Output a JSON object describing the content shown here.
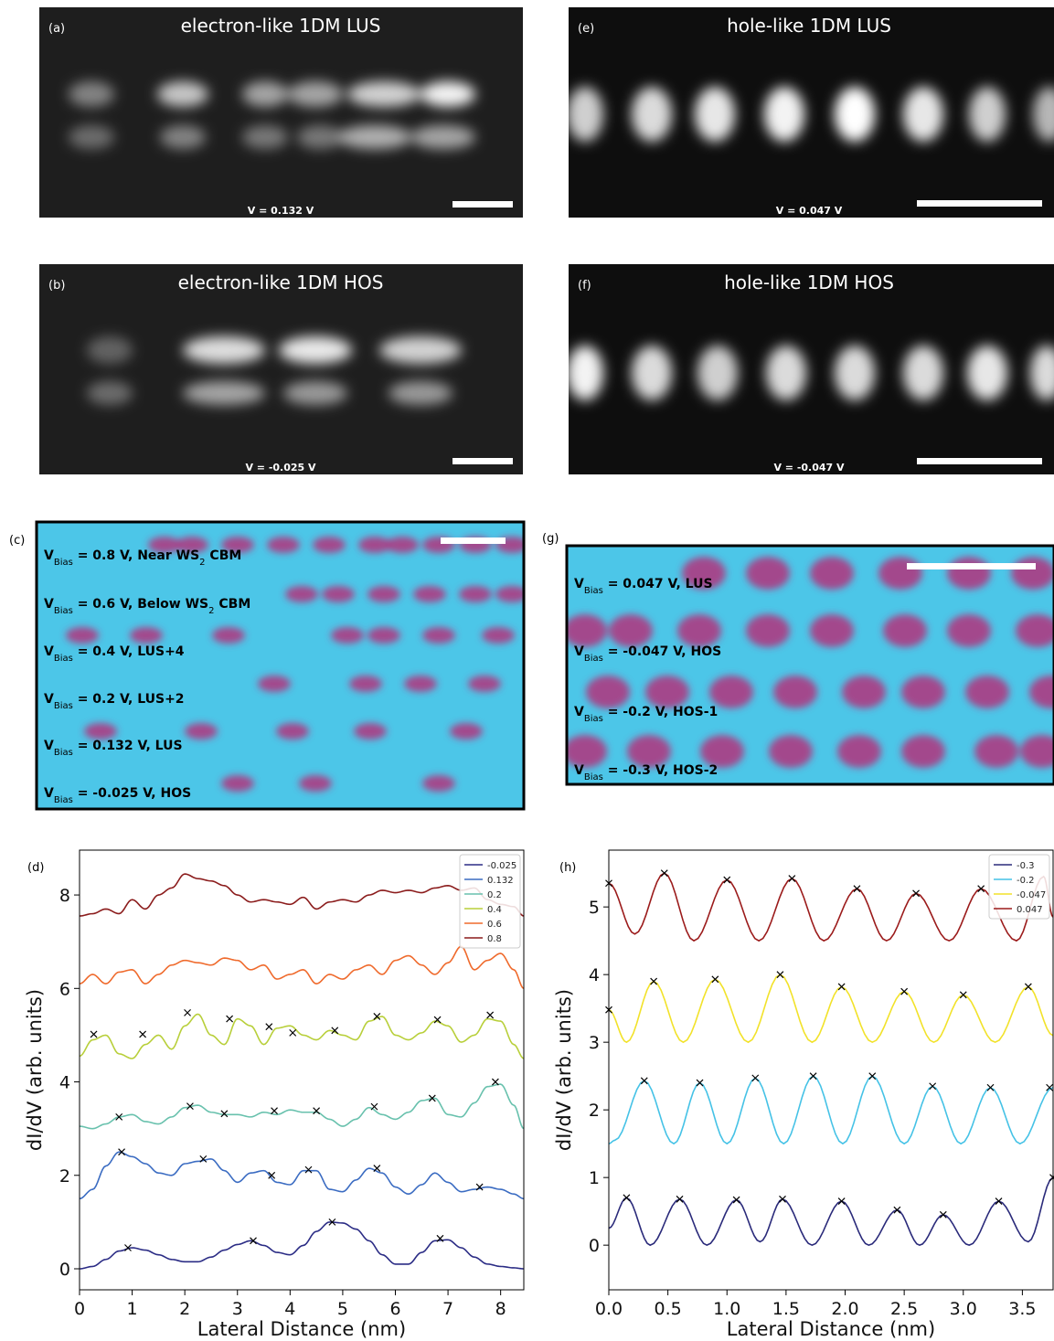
{
  "panels": [
    {
      "label": "(a)",
      "title": "electron-like 1DM LUS",
      "voltage": "V = 0.132 V"
    },
    {
      "label": "(b)",
      "title": "electron-like 1DM HOS",
      "voltage": "V = -0.025 V"
    },
    {
      "label": "(e)",
      "title": "hole-like 1DM LUS",
      "voltage": "V = 0.047 V"
    },
    {
      "label": "(f)",
      "title": "hole-like 1DM HOS",
      "voltage": "V = -0.047 V"
    }
  ],
  "maps": [
    {
      "label": "(c)",
      "rows": [
        [
          "V",
          "Bias",
          " = 0.8 V, Near WS",
          "2",
          " CBM"
        ],
        [
          "V",
          "Bias",
          " = 0.6 V, Below WS",
          "2",
          " CBM"
        ],
        [
          "V",
          "Bias",
          " = 0.4 V, LUS+4"
        ],
        [
          "V",
          "Bias",
          " = 0.2 V, LUS+2"
        ],
        [
          "V",
          "Bias",
          " = 0.132 V, LUS"
        ],
        [
          "V",
          "Bias",
          " = -0.025 V, HOS"
        ]
      ]
    },
    {
      "label": "(g)",
      "rows": [
        [
          "V",
          "Bias",
          " = 0.047 V, LUS"
        ],
        [
          "V",
          "Bias",
          " = -0.047 V, HOS"
        ],
        [
          "V",
          "Bias",
          " = -0.2 V, HOS-1"
        ],
        [
          "V",
          "Bias",
          " = -0.3 V, HOS-2"
        ]
      ]
    }
  ],
  "chart_data": [
    {
      "type": "line",
      "panel_label": "(d)",
      "xlabel": "Lateral Distance (nm)",
      "ylabel": "dI/dV (arb. units)",
      "x": [
        0,
        0.25,
        0.5,
        0.75,
        1,
        1.25,
        1.5,
        1.75,
        2,
        2.25,
        2.5,
        2.75,
        3,
        3.25,
        3.5,
        3.75,
        4,
        4.25,
        4.5,
        4.75,
        5,
        5.25,
        5.5,
        5.75,
        6,
        6.25,
        6.5,
        6.75,
        7,
        7.25,
        7.5,
        7.75,
        8,
        8.25,
        8.44
      ],
      "xlim": [
        0,
        8.44
      ],
      "ylim": [
        -0.45,
        8.96
      ],
      "xticks": [
        0,
        1,
        2,
        3,
        4,
        5,
        6,
        7,
        8
      ],
      "yticks": [
        0,
        2,
        4,
        6,
        8
      ],
      "legend": "upper right",
      "series": [
        {
          "name": "-0.025",
          "color": "#2b2c85",
          "values": [
            0.0,
            0.05,
            0.2,
            0.38,
            0.45,
            0.4,
            0.3,
            0.2,
            0.15,
            0.15,
            0.25,
            0.4,
            0.52,
            0.6,
            0.5,
            0.35,
            0.3,
            0.5,
            0.8,
            1.0,
            0.98,
            0.85,
            0.6,
            0.3,
            0.1,
            0.1,
            0.35,
            0.6,
            0.62,
            0.45,
            0.25,
            0.1,
            0.05,
            0.02,
            0.0
          ],
          "peaks": {
            "x": [
              0.92,
              3.3,
              4.8,
              6.85
            ],
            "y": [
              0.45,
              0.6,
              1.0,
              0.65
            ]
          }
        },
        {
          "name": "0.132",
          "color": "#3b6cc2",
          "values": [
            1.5,
            1.7,
            2.2,
            2.5,
            2.4,
            2.25,
            2.05,
            2.0,
            2.25,
            2.3,
            2.35,
            2.1,
            1.85,
            2.05,
            2.1,
            1.85,
            1.8,
            2.1,
            2.1,
            1.7,
            1.65,
            1.9,
            2.15,
            2.05,
            1.75,
            1.6,
            1.8,
            2.05,
            1.85,
            1.65,
            1.7,
            1.75,
            1.7,
            1.6,
            1.5
          ],
          "peaks": {
            "x": [
              0.8,
              2.35,
              3.65,
              4.35,
              5.65,
              7.6
            ],
            "y": [
              2.5,
              2.35,
              2.0,
              2.12,
              2.15,
              1.75
            ]
          }
        },
        {
          "name": "0.2",
          "color": "#68c1ad",
          "values": [
            3.05,
            3.0,
            3.1,
            3.25,
            3.3,
            3.15,
            3.1,
            3.25,
            3.45,
            3.5,
            3.35,
            3.3,
            3.3,
            3.25,
            3.35,
            3.3,
            3.4,
            3.35,
            3.35,
            3.2,
            3.05,
            3.2,
            3.45,
            3.3,
            3.2,
            3.35,
            3.6,
            3.65,
            3.3,
            3.25,
            3.55,
            3.9,
            3.95,
            3.5,
            3.0
          ],
          "peaks": {
            "x": [
              0.75,
              2.1,
              2.75,
              3.7,
              4.5,
              5.6,
              6.7,
              7.9
            ],
            "y": [
              3.25,
              3.48,
              3.32,
              3.38,
              3.38,
              3.47,
              3.65,
              4.0
            ]
          }
        },
        {
          "name": "0.4",
          "color": "#b8cf3a",
          "values": [
            4.55,
            4.9,
            5.0,
            4.6,
            4.5,
            4.8,
            5.0,
            4.7,
            5.2,
            5.45,
            5.0,
            4.8,
            5.35,
            5.2,
            4.8,
            5.15,
            5.2,
            5.0,
            4.9,
            5.1,
            5.0,
            4.9,
            5.3,
            5.4,
            5.0,
            4.9,
            5.05,
            5.3,
            5.2,
            4.85,
            5.0,
            5.35,
            5.3,
            4.8,
            4.5
          ],
          "peaks": {
            "x": [
              0.27,
              1.2,
              2.05,
              2.85,
              3.6,
              4.05,
              4.85,
              5.65,
              6.8,
              7.8
            ],
            "y": [
              5.02,
              5.02,
              5.48,
              5.35,
              5.18,
              5.05,
              5.1,
              5.4,
              5.33,
              5.43
            ]
          }
        },
        {
          "name": "0.6",
          "color": "#ef6a2c",
          "values": [
            6.1,
            6.3,
            6.1,
            6.35,
            6.4,
            6.1,
            6.3,
            6.5,
            6.6,
            6.55,
            6.5,
            6.65,
            6.6,
            6.4,
            6.5,
            6.2,
            6.3,
            6.4,
            6.1,
            6.3,
            6.2,
            6.4,
            6.5,
            6.3,
            6.6,
            6.7,
            6.5,
            6.3,
            6.55,
            6.9,
            6.4,
            6.6,
            6.75,
            6.4,
            6.0
          ]
        },
        {
          "name": "0.8",
          "color": "#8b1c1c",
          "values": [
            7.55,
            7.6,
            7.7,
            7.6,
            7.9,
            7.7,
            8.0,
            8.15,
            8.45,
            8.35,
            8.3,
            8.2,
            8.0,
            7.85,
            7.9,
            7.85,
            7.8,
            7.95,
            7.7,
            7.85,
            7.9,
            7.85,
            8.0,
            8.1,
            8.05,
            8.1,
            8.05,
            8.15,
            8.2,
            8.1,
            8.15,
            7.9,
            7.8,
            7.75,
            7.55
          ]
        }
      ]
    },
    {
      "type": "line",
      "panel_label": "(h)",
      "xlabel": "Lateral Distance (nm)",
      "ylabel": "dI/dV (arb. units)",
      "xlim": [
        0,
        3.76
      ],
      "ylim": [
        -0.66,
        5.84
      ],
      "xticks": [
        {
          "value": 0,
          "label": "0.0"
        },
        0.5,
        {
          "value": 1,
          "label": "1.0"
        },
        1.5,
        {
          "value": 2,
          "label": "2.0"
        },
        2.5,
        {
          "value": 3,
          "label": "3.0"
        },
        3.5
      ],
      "yticks": [
        0,
        1,
        2,
        3,
        4,
        5
      ],
      "legend": "upper right",
      "series": [
        {
          "name": "-0.3",
          "color": "#2a2a7a",
          "x": [
            0,
            0.15,
            0.35,
            0.6,
            0.83,
            1.08,
            1.28,
            1.47,
            1.72,
            1.97,
            2.2,
            2.44,
            2.63,
            2.83,
            3.05,
            3.3,
            3.55,
            3.76
          ],
          "values": [
            0.25,
            0.7,
            0.0,
            0.68,
            0.0,
            0.67,
            0.05,
            0.68,
            0.0,
            0.65,
            0.0,
            0.52,
            0.0,
            0.45,
            0.0,
            0.65,
            0.05,
            1.0
          ],
          "peaks": {
            "x": [
              0.15,
              0.6,
              1.08,
              1.47,
              1.97,
              2.44,
              2.83,
              3.3,
              3.76
            ],
            "y": [
              0.7,
              0.68,
              0.67,
              0.68,
              0.65,
              0.52,
              0.45,
              0.65,
              1.0
            ]
          }
        },
        {
          "name": "-0.2",
          "color": "#45c2e6",
          "x": [
            0,
            0.05,
            0.3,
            0.55,
            0.77,
            1.0,
            1.24,
            1.48,
            1.73,
            1.98,
            2.23,
            2.5,
            2.74,
            2.98,
            3.23,
            3.48,
            3.76
          ],
          "values": [
            1.5,
            1.55,
            2.43,
            1.5,
            2.4,
            1.5,
            2.47,
            1.5,
            2.5,
            1.5,
            2.5,
            1.5,
            2.35,
            1.5,
            2.33,
            1.5,
            2.33
          ],
          "peaks": {
            "x": [
              0.3,
              0.77,
              1.24,
              1.73,
              2.23,
              2.74,
              3.23,
              3.73
            ],
            "y": [
              2.43,
              2.4,
              2.47,
              2.5,
              2.5,
              2.35,
              2.33,
              2.33
            ]
          }
        },
        {
          "name": "-0.047",
          "color": "#f2e22a",
          "x": [
            0,
            0.15,
            0.38,
            0.63,
            0.9,
            1.18,
            1.45,
            1.72,
            1.97,
            2.23,
            2.5,
            2.75,
            3.0,
            3.27,
            3.55,
            3.76
          ],
          "values": [
            3.48,
            3.0,
            3.9,
            3.0,
            3.93,
            3.0,
            4.0,
            3.0,
            3.82,
            3.0,
            3.75,
            3.0,
            3.7,
            3.0,
            3.82,
            3.1
          ],
          "peaks": {
            "x": [
              0,
              0.38,
              0.9,
              1.45,
              1.97,
              2.5,
              3.0,
              3.55
            ],
            "y": [
              3.48,
              3.9,
              3.93,
              4.0,
              3.82,
              3.75,
              3.7,
              3.82
            ]
          }
        },
        {
          "name": "0.047",
          "color": "#9b1b1b",
          "x": [
            0,
            0.22,
            0.47,
            0.72,
            1.0,
            1.27,
            1.55,
            1.82,
            2.1,
            2.35,
            2.6,
            2.88,
            3.15,
            3.45,
            3.68,
            3.76
          ],
          "values": [
            5.35,
            4.6,
            5.5,
            4.5,
            5.4,
            4.5,
            5.42,
            4.5,
            5.27,
            4.5,
            5.2,
            4.5,
            5.27,
            4.5,
            5.45,
            4.85
          ],
          "peaks": {
            "x": [
              0,
              0.47,
              1.0,
              1.55,
              2.1,
              2.6,
              3.15
            ],
            "y": [
              5.35,
              5.5,
              5.4,
              5.42,
              5.27,
              5.2,
              5.27
            ]
          }
        }
      ]
    }
  ]
}
